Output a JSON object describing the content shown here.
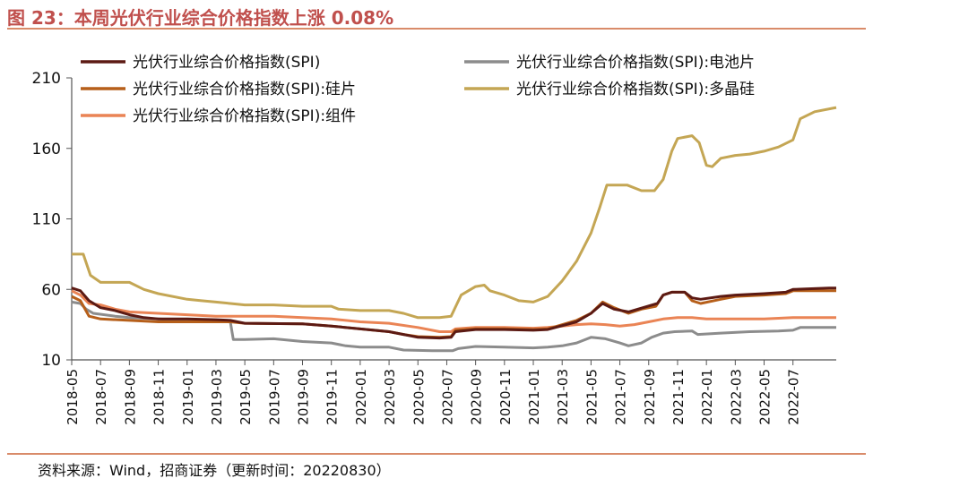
{
  "figure": {
    "title": "图 23：本周光伏行业综合价格指数上涨 0.08%",
    "source": "资料来源：Wind，招商证券（更新时间：20220830）"
  },
  "chart_data": {
    "type": "line",
    "title": "",
    "xlabel": "",
    "ylabel": "",
    "ylim": [
      10,
      210
    ],
    "yticks": [
      10,
      60,
      110,
      160,
      210
    ],
    "xlim": [
      0,
      53
    ],
    "xticks": [
      {
        "x": 0,
        "label": "2018-05"
      },
      {
        "x": 2,
        "label": "2018-07"
      },
      {
        "x": 4,
        "label": "2018-09"
      },
      {
        "x": 6,
        "label": "2018-11"
      },
      {
        "x": 8,
        "label": "2019-01"
      },
      {
        "x": 10,
        "label": "2019-03"
      },
      {
        "x": 12,
        "label": "2019-05"
      },
      {
        "x": 14,
        "label": "2019-07"
      },
      {
        "x": 16,
        "label": "2019-09"
      },
      {
        "x": 18,
        "label": "2019-11"
      },
      {
        "x": 20,
        "label": "2020-01"
      },
      {
        "x": 22,
        "label": "2020-03"
      },
      {
        "x": 24,
        "label": "2020-05"
      },
      {
        "x": 26,
        "label": "2020-07"
      },
      {
        "x": 28,
        "label": "2020-09"
      },
      {
        "x": 30,
        "label": "2020-11"
      },
      {
        "x": 32,
        "label": "2021-01"
      },
      {
        "x": 34,
        "label": "2021-03"
      },
      {
        "x": 36,
        "label": "2021-05"
      },
      {
        "x": 38,
        "label": "2021-07"
      },
      {
        "x": 40,
        "label": "2021-09"
      },
      {
        "x": 42,
        "label": "2021-11"
      },
      {
        "x": 44,
        "label": "2022-01"
      },
      {
        "x": 46,
        "label": "2022-03"
      },
      {
        "x": 48,
        "label": "2022-05"
      },
      {
        "x": 50,
        "label": "2022-07"
      }
    ],
    "grid": false,
    "legend_position": "top",
    "series": [
      {
        "name": "光伏行业综合价格指数(SPI)",
        "color": "#5c1a13",
        "points": [
          [
            0,
            61
          ],
          [
            0.6,
            59
          ],
          [
            1.2,
            52
          ],
          [
            2,
            47
          ],
          [
            3,
            45
          ],
          [
            4,
            42
          ],
          [
            5,
            40
          ],
          [
            6,
            39
          ],
          [
            8,
            39
          ],
          [
            10,
            38.5
          ],
          [
            11,
            38
          ],
          [
            12,
            36
          ],
          [
            16,
            35.5
          ],
          [
            18,
            34
          ],
          [
            20,
            32
          ],
          [
            22,
            30
          ],
          [
            23,
            28
          ],
          [
            24,
            26
          ],
          [
            25.5,
            25.5
          ],
          [
            26.3,
            26
          ],
          [
            26.6,
            30
          ],
          [
            28,
            31.5
          ],
          [
            30,
            31.5
          ],
          [
            32,
            31
          ],
          [
            33,
            31.5
          ],
          [
            35,
            37
          ],
          [
            36,
            43
          ],
          [
            36.8,
            50
          ],
          [
            37.6,
            46
          ],
          [
            38.6,
            44
          ],
          [
            39.6,
            47
          ],
          [
            40.6,
            50
          ],
          [
            41,
            56
          ],
          [
            41.6,
            58
          ],
          [
            42.5,
            58
          ],
          [
            43,
            54
          ],
          [
            43.6,
            53
          ],
          [
            45,
            55
          ],
          [
            46,
            56
          ],
          [
            48,
            57
          ],
          [
            49.5,
            58
          ],
          [
            50,
            60
          ],
          [
            52.5,
            61
          ],
          [
            53,
            61
          ]
        ]
      },
      {
        "name": "光伏行业综合价格指数(SPI):电池片",
        "color": "#8c8c8c",
        "points": [
          [
            0,
            51
          ],
          [
            0.6,
            50
          ],
          [
            1,
            46
          ],
          [
            1.5,
            43
          ],
          [
            3,
            41
          ],
          [
            4,
            40
          ],
          [
            6,
            39
          ],
          [
            8,
            38
          ],
          [
            10,
            37.5
          ],
          [
            11,
            37
          ],
          [
            11.2,
            24.5
          ],
          [
            12,
            24.5
          ],
          [
            14,
            25
          ],
          [
            16,
            23
          ],
          [
            18,
            22
          ],
          [
            19,
            20
          ],
          [
            20,
            19
          ],
          [
            22,
            19
          ],
          [
            23,
            17
          ],
          [
            25,
            16.5
          ],
          [
            26.4,
            16.5
          ],
          [
            26.8,
            18
          ],
          [
            28,
            19.5
          ],
          [
            30,
            19
          ],
          [
            32,
            18.5
          ],
          [
            33,
            19
          ],
          [
            34,
            20
          ],
          [
            35,
            22
          ],
          [
            36,
            26
          ],
          [
            37,
            25
          ],
          [
            38,
            22
          ],
          [
            38.6,
            20
          ],
          [
            39.5,
            22
          ],
          [
            40.2,
            26
          ],
          [
            41,
            29
          ],
          [
            41.8,
            30
          ],
          [
            43,
            30.5
          ],
          [
            43.4,
            28
          ],
          [
            45,
            29
          ],
          [
            47,
            30
          ],
          [
            49,
            30.5
          ],
          [
            50,
            31
          ],
          [
            50.5,
            33
          ],
          [
            53,
            33
          ]
        ]
      },
      {
        "name": "光伏行业综合价格指数(SPI):硅片",
        "color": "#b65f1a",
        "points": [
          [
            0,
            55
          ],
          [
            0.6,
            52
          ],
          [
            1.2,
            41
          ],
          [
            2,
            39
          ],
          [
            4,
            38
          ],
          [
            6,
            37
          ],
          [
            8,
            37
          ],
          [
            10,
            37
          ],
          [
            11,
            37
          ],
          [
            12,
            36
          ],
          [
            16,
            35.5
          ],
          [
            18,
            34
          ],
          [
            20,
            32
          ],
          [
            22,
            30
          ],
          [
            23,
            28
          ],
          [
            24,
            26.5
          ],
          [
            25.5,
            26
          ],
          [
            26.3,
            26.5
          ],
          [
            26.6,
            31
          ],
          [
            28,
            32
          ],
          [
            30,
            32
          ],
          [
            32,
            31.5
          ],
          [
            33,
            32
          ],
          [
            35,
            38
          ],
          [
            36,
            43
          ],
          [
            36.8,
            51
          ],
          [
            37.6,
            47
          ],
          [
            38.6,
            43
          ],
          [
            39.5,
            46
          ],
          [
            40.5,
            48
          ],
          [
            41,
            56
          ],
          [
            41.6,
            58
          ],
          [
            42.5,
            58
          ],
          [
            43,
            52
          ],
          [
            43.6,
            50
          ],
          [
            45,
            53
          ],
          [
            46,
            55
          ],
          [
            48,
            56
          ],
          [
            49.5,
            57
          ],
          [
            50,
            59
          ],
          [
            53,
            59
          ]
        ]
      },
      {
        "name": "光伏行业综合价格指数(SPI):多晶硅",
        "color": "#c4a654",
        "points": [
          [
            0,
            85
          ],
          [
            0.8,
            85
          ],
          [
            1.3,
            70
          ],
          [
            2,
            65
          ],
          [
            4,
            65
          ],
          [
            5,
            60
          ],
          [
            6,
            57
          ],
          [
            8,
            53
          ],
          [
            9,
            52
          ],
          [
            10,
            51
          ],
          [
            11,
            50
          ],
          [
            12,
            49
          ],
          [
            14,
            49
          ],
          [
            16,
            48
          ],
          [
            18,
            48
          ],
          [
            18.5,
            46
          ],
          [
            20,
            45
          ],
          [
            22,
            45
          ],
          [
            23,
            43
          ],
          [
            24,
            40
          ],
          [
            25.5,
            40
          ],
          [
            26.3,
            41
          ],
          [
            27,
            56
          ],
          [
            28,
            62
          ],
          [
            28.6,
            63
          ],
          [
            29,
            59
          ],
          [
            30,
            56
          ],
          [
            31,
            52
          ],
          [
            32,
            51
          ],
          [
            33,
            55
          ],
          [
            34,
            66
          ],
          [
            35,
            80
          ],
          [
            36,
            100
          ],
          [
            36.6,
            118
          ],
          [
            37.1,
            134
          ],
          [
            38.5,
            134
          ],
          [
            39.5,
            130
          ],
          [
            40.4,
            130
          ],
          [
            41,
            138
          ],
          [
            41.6,
            158
          ],
          [
            42,
            167
          ],
          [
            43,
            169
          ],
          [
            43.5,
            164
          ],
          [
            44,
            148
          ],
          [
            44.4,
            147
          ],
          [
            45,
            153
          ],
          [
            46,
            155
          ],
          [
            47,
            156
          ],
          [
            48,
            158
          ],
          [
            49,
            161
          ],
          [
            50,
            166
          ],
          [
            50.5,
            181
          ],
          [
            51.5,
            186
          ],
          [
            53,
            189
          ]
        ]
      },
      {
        "name": "光伏行业综合价格指数(SPI):组件",
        "color": "#ea8455",
        "points": [
          [
            0,
            59
          ],
          [
            0.6,
            56
          ],
          [
            1.2,
            50
          ],
          [
            2,
            49
          ],
          [
            3,
            46
          ],
          [
            4,
            44
          ],
          [
            6,
            43
          ],
          [
            8,
            42
          ],
          [
            10,
            41
          ],
          [
            12,
            41
          ],
          [
            14,
            41
          ],
          [
            16,
            40
          ],
          [
            18,
            39
          ],
          [
            20,
            37
          ],
          [
            22,
            36
          ],
          [
            24,
            33
          ],
          [
            25.5,
            30
          ],
          [
            26.3,
            30
          ],
          [
            26.6,
            32
          ],
          [
            28,
            33
          ],
          [
            30,
            33
          ],
          [
            32,
            32.5
          ],
          [
            33,
            33
          ],
          [
            34,
            34
          ],
          [
            35,
            35
          ],
          [
            36,
            35.5
          ],
          [
            37,
            35
          ],
          [
            38,
            34
          ],
          [
            39,
            35
          ],
          [
            40,
            37
          ],
          [
            41,
            39
          ],
          [
            42,
            40
          ],
          [
            43,
            40
          ],
          [
            44,
            39
          ],
          [
            46,
            39
          ],
          [
            48,
            39
          ],
          [
            50,
            40
          ],
          [
            53,
            40
          ]
        ]
      }
    ]
  }
}
